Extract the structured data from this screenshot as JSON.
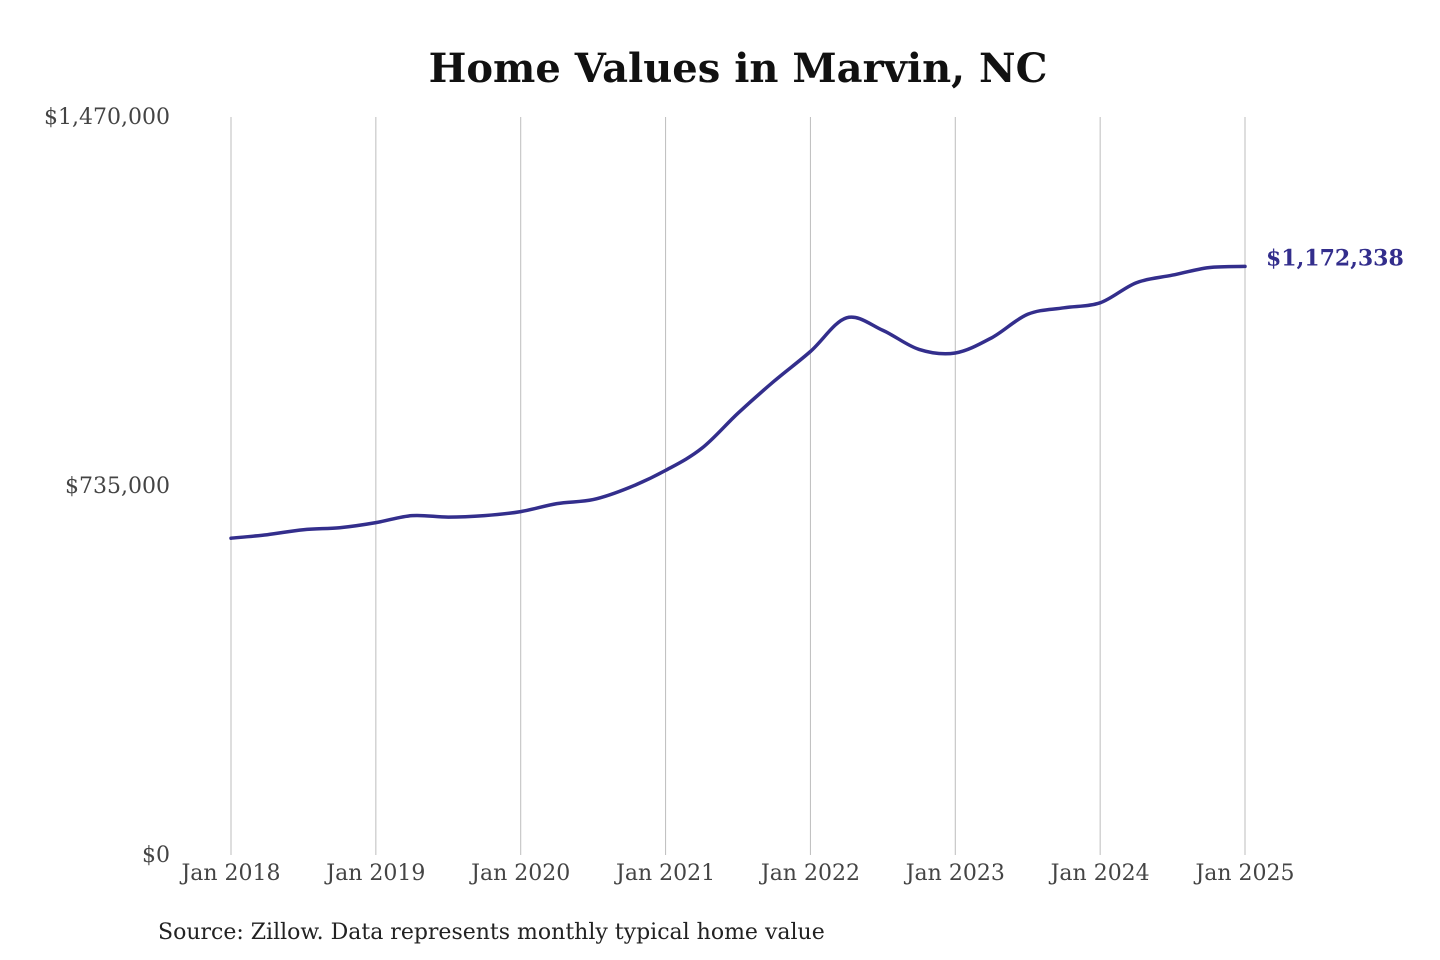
{
  "colors": {
    "line": "#332e8c",
    "grid": "#bdbdbd",
    "end_label": "#332e8c"
  },
  "chart_data": {
    "type": "line",
    "title": "Home Values in Marvin, NC",
    "xlabel": "",
    "ylabel": "",
    "ylim": [
      0,
      1470000
    ],
    "xlim": [
      "2018-01",
      "2025-01"
    ],
    "y_ticks": [
      "$0",
      "$735,000",
      "$1,470,000"
    ],
    "x_ticks": [
      "Jan 2018",
      "Jan 2019",
      "Jan 2020",
      "Jan 2021",
      "Jan 2022",
      "Jan 2023",
      "Jan 2024",
      "Jan 2025"
    ],
    "grid": "vertical",
    "series": [
      {
        "x": [
          "2018-01",
          "2018-04",
          "2018-07",
          "2018-10",
          "2019-01",
          "2019-04",
          "2019-07",
          "2019-10",
          "2020-01",
          "2020-04",
          "2020-07",
          "2020-10",
          "2021-01",
          "2021-04",
          "2021-07",
          "2021-10",
          "2022-01",
          "2022-04",
          "2022-07",
          "2022-10",
          "2023-01",
          "2023-04",
          "2023-07",
          "2023-10",
          "2024-01",
          "2024-04",
          "2024-07",
          "2024-10",
          "2025-01"
        ],
        "values": [
          631000,
          638000,
          648000,
          652000,
          662000,
          676000,
          673000,
          676000,
          684000,
          700000,
          708000,
          732000,
          766000,
          810000,
          880000,
          944000,
          1003000,
          1070000,
          1045000,
          1007000,
          1000000,
          1030000,
          1077000,
          1090000,
          1100000,
          1140000,
          1155000,
          1170000,
          1172338
        ]
      }
    ],
    "end_label": "$1,172,338",
    "source": "Source: Zillow. Data represents monthly typical home value"
  }
}
